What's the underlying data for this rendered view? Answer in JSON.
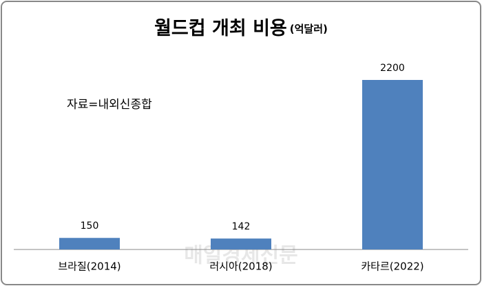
{
  "chart_data": {
    "type": "bar",
    "title": "월드컵 개최 비용",
    "subtitle": "(억달러)",
    "annotation": "자료=내외신종합",
    "watermark": "매일경제신문",
    "categories": [
      "브라질(2014)",
      "러시아(2018)",
      "카타르(2022)"
    ],
    "values": [
      150,
      142,
      2200
    ],
    "color": "#4f81bd"
  }
}
